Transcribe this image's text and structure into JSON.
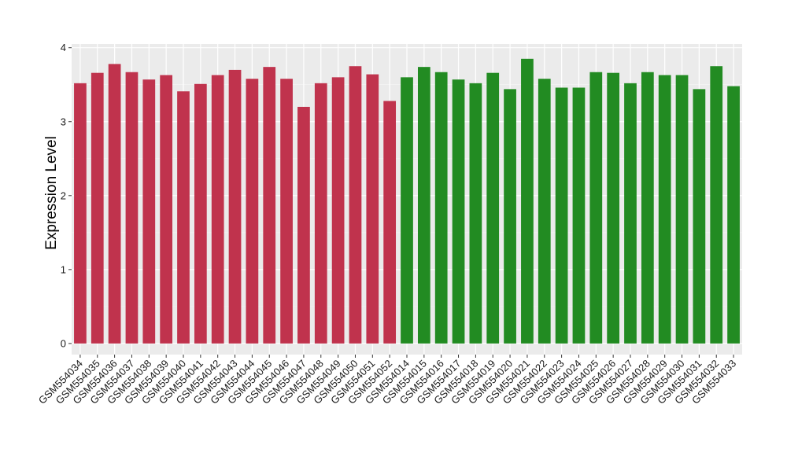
{
  "chart_data": {
    "type": "bar",
    "title": "",
    "xlabel": "",
    "ylabel": "Expression Level",
    "ylim": [
      -0.15,
      4.05
    ],
    "yticks": [
      0,
      1,
      2,
      3,
      4
    ],
    "grid": true,
    "legend": "none",
    "panel_background": "#ebebeb",
    "categories": [
      "GSM554034",
      "GSM554035",
      "GSM554036",
      "GSM554037",
      "GSM554038",
      "GSM554039",
      "GSM554040",
      "GSM554041",
      "GSM554042",
      "GSM554043",
      "GSM554044",
      "GSM554045",
      "GSM554046",
      "GSM554047",
      "GSM554048",
      "GSM554049",
      "GSM554050",
      "GSM554051",
      "GSM554052",
      "GSM554014",
      "GSM554015",
      "GSM554016",
      "GSM554017",
      "GSM554018",
      "GSM554019",
      "GSM554020",
      "GSM554021",
      "GSM554022",
      "GSM554023",
      "GSM554024",
      "GSM554025",
      "GSM554026",
      "GSM554027",
      "GSM554028",
      "GSM554029",
      "GSM554030",
      "GSM554031",
      "GSM554032",
      "GSM554033"
    ],
    "values": [
      3.52,
      3.66,
      3.78,
      3.67,
      3.57,
      3.63,
      3.41,
      3.51,
      3.63,
      3.7,
      3.58,
      3.74,
      3.58,
      3.2,
      3.52,
      3.6,
      3.75,
      3.64,
      3.28,
      3.6,
      3.74,
      3.67,
      3.57,
      3.52,
      3.66,
      3.44,
      3.85,
      3.58,
      3.46,
      3.46,
      3.67,
      3.66,
      3.52,
      3.67,
      3.63,
      3.63,
      3.44,
      3.75,
      3.48
    ],
    "groups": [
      {
        "color": "#c0334d",
        "count": 19
      },
      {
        "color": "#228b22",
        "count": 20
      }
    ]
  }
}
